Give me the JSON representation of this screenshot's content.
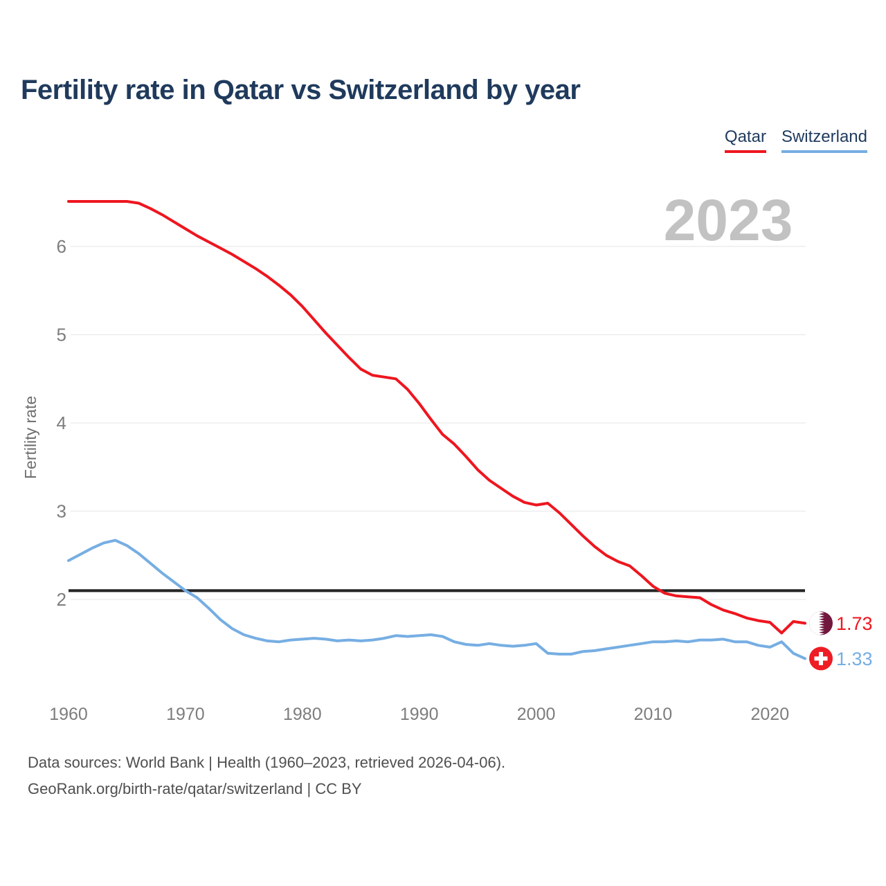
{
  "page": {
    "title": "Fertility rate in Qatar vs Switzerland by year",
    "footer": {
      "line1": "Data sources: World Bank | Health (1960–2023, retrieved 2026-04-06).",
      "line2": "GeoRank.org/birth-rate/qatar/switzerland | CC BY"
    }
  },
  "legend": {
    "items": [
      {
        "label": "Qatar",
        "color": "#ee161f"
      },
      {
        "label": "Switzerland",
        "color": "#76aee3"
      }
    ]
  },
  "chart_data": {
    "type": "line",
    "title": "Fertility rate in Qatar vs Switzerland by year",
    "watermark": "2023",
    "xlabel": "",
    "ylabel": "Fertility rate",
    "grid": "horizontal",
    "legend_position": "top-right",
    "x_range": [
      1960,
      2023
    ],
    "xticks": [
      1960,
      1970,
      1980,
      1990,
      2000,
      2010,
      2020
    ],
    "yticks": [
      2,
      3,
      4,
      5,
      6
    ],
    "ylim": [
      1.05,
      6.7
    ],
    "reference_line": {
      "value": 2.1,
      "color": "#262626"
    },
    "years": [
      1960,
      1961,
      1962,
      1963,
      1964,
      1965,
      1966,
      1967,
      1968,
      1969,
      1970,
      1971,
      1972,
      1973,
      1974,
      1975,
      1976,
      1977,
      1978,
      1979,
      1980,
      1981,
      1982,
      1983,
      1984,
      1985,
      1986,
      1987,
      1988,
      1989,
      1990,
      1991,
      1992,
      1993,
      1994,
      1995,
      1996,
      1997,
      1998,
      1999,
      2000,
      2001,
      2002,
      2003,
      2004,
      2005,
      2006,
      2007,
      2008,
      2009,
      2010,
      2011,
      2012,
      2013,
      2014,
      2015,
      2016,
      2017,
      2018,
      2019,
      2020,
      2021,
      2022,
      2023
    ],
    "series": [
      {
        "name": "Qatar",
        "color": "#ee161f",
        "end_label": "1.73",
        "flag": "qatar-flag",
        "values": [
          6.51,
          6.51,
          6.51,
          6.51,
          6.51,
          6.51,
          6.49,
          6.43,
          6.36,
          6.28,
          6.2,
          6.12,
          6.05,
          5.98,
          5.91,
          5.83,
          5.75,
          5.66,
          5.56,
          5.45,
          5.32,
          5.17,
          5.02,
          4.88,
          4.74,
          4.61,
          4.54,
          4.52,
          4.5,
          4.38,
          4.22,
          4.04,
          3.87,
          3.76,
          3.62,
          3.47,
          3.35,
          3.26,
          3.17,
          3.1,
          3.07,
          3.09,
          2.98,
          2.85,
          2.72,
          2.6,
          2.5,
          2.43,
          2.38,
          2.27,
          2.15,
          2.07,
          2.04,
          2.03,
          2.02,
          1.94,
          1.88,
          1.84,
          1.79,
          1.76,
          1.74,
          1.62,
          1.75,
          1.73
        ]
      },
      {
        "name": "Switzerland",
        "color": "#76aee3",
        "end_label": "1.33",
        "flag": "switzerland-flag",
        "values": [
          2.44,
          2.51,
          2.58,
          2.64,
          2.67,
          2.61,
          2.52,
          2.41,
          2.3,
          2.2,
          2.1,
          2.02,
          1.9,
          1.77,
          1.67,
          1.6,
          1.56,
          1.53,
          1.52,
          1.54,
          1.55,
          1.56,
          1.55,
          1.53,
          1.54,
          1.53,
          1.54,
          1.56,
          1.59,
          1.58,
          1.59,
          1.6,
          1.58,
          1.52,
          1.49,
          1.48,
          1.5,
          1.48,
          1.47,
          1.48,
          1.5,
          1.39,
          1.38,
          1.38,
          1.41,
          1.42,
          1.44,
          1.46,
          1.48,
          1.5,
          1.52,
          1.52,
          1.53,
          1.52,
          1.54,
          1.54,
          1.55,
          1.52,
          1.52,
          1.48,
          1.46,
          1.52,
          1.39,
          1.33
        ]
      }
    ],
    "flag_colors": {
      "qatar_maroon": "#72173d",
      "swiss_red": "#ee1c25"
    },
    "style_colors": {
      "title": "#1f3a5c",
      "ticks": "#7d7d7d",
      "axis_title": "#6e6e6e",
      "gridline": "#ededed",
      "watermark": "#c2c2c2",
      "footer": "#4f4f4f"
    }
  }
}
